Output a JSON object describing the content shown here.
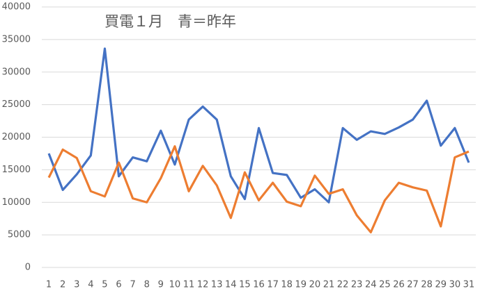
{
  "chart_data": {
    "type": "line",
    "title": "買電１月　青＝昨年",
    "categories": [
      "1",
      "2",
      "3",
      "4",
      "5",
      "6",
      "7",
      "8",
      "9",
      "10",
      "11",
      "12",
      "13",
      "14",
      "15",
      "16",
      "17",
      "18",
      "19",
      "20",
      "21",
      "22",
      "23",
      "24",
      "25",
      "26",
      "27",
      "28",
      "29",
      "30",
      "31"
    ],
    "series": [
      {
        "color": "#4472c4",
        "values": [
          17500,
          11900,
          14300,
          17200,
          33600,
          14000,
          16900,
          16300,
          21000,
          15800,
          22700,
          24700,
          22700,
          14000,
          10500,
          21400,
          14500,
          14200,
          10700,
          12000,
          10000,
          21400,
          19600,
          20900,
          20500,
          21500,
          22700,
          25600,
          18700,
          21400,
          16100
        ]
      },
      {
        "color": "#ed7d31",
        "values": [
          13800,
          18100,
          16800,
          11700,
          10900,
          16100,
          10600,
          10000,
          13700,
          18600,
          11700,
          15600,
          12600,
          7600,
          14600,
          10300,
          13000,
          10100,
          9400,
          14100,
          11300,
          12000,
          8000,
          5400,
          10300,
          13000,
          12300,
          11800,
          6300,
          16900,
          17800
        ]
      }
    ],
    "ylim": [
      0,
      40000
    ],
    "yticks": [
      0,
      5000,
      10000,
      15000,
      20000,
      25000,
      30000,
      35000,
      40000
    ],
    "grid": true
  }
}
